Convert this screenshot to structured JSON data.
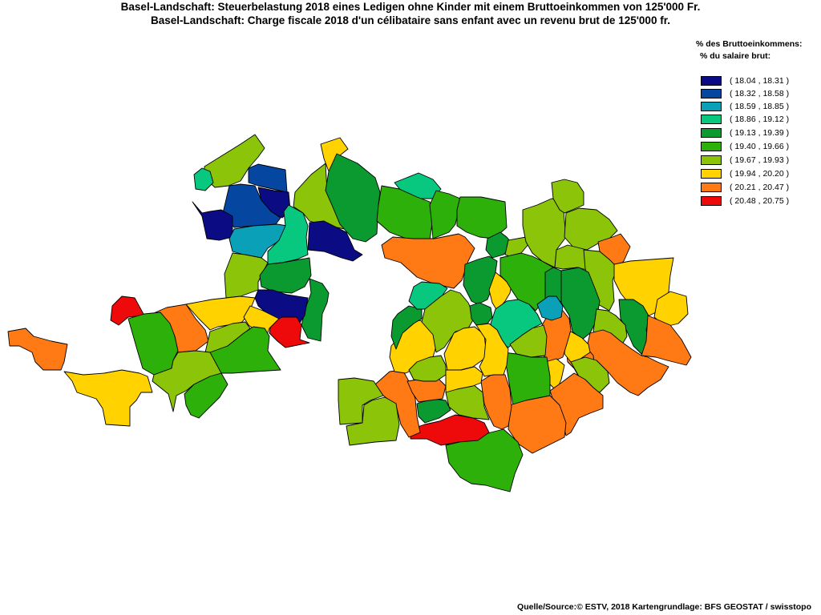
{
  "title_de": "Basel-Landschaft: Steuerbelastung 2018 eines Ledigen ohne Kinder mit einem Bruttoeinkommen von 125'000 Fr.",
  "title_fr": "Basel-Landschaft: Charge fiscale 2018 d'un célibataire sans enfant avec un revenu brut de 125'000 fr.",
  "legend": {
    "heading_de": "% des Bruttoeinkommens:",
    "heading_fr": "% du salaire brut:",
    "classes": [
      {
        "label": "( 18.04 , 18.31 )",
        "color": "#0b0b84"
      },
      {
        "label": "( 18.32 , 18.58 )",
        "color": "#0547a0"
      },
      {
        "label": "( 18.59 , 18.85 )",
        "color": "#0aa0b8"
      },
      {
        "label": "( 18.86 , 19.12 )",
        "color": "#08c880"
      },
      {
        "label": "( 19.13 , 19.39 )",
        "color": "#0a9a30"
      },
      {
        "label": "( 19.40 , 19.66 )",
        "color": "#2eb00a"
      },
      {
        "label": "( 19.67 , 19.93 )",
        "color": "#8cc40a"
      },
      {
        "label": "( 19.94 , 20.20 )",
        "color": "#ffd200"
      },
      {
        "label": "( 20.21 , 20.47 )",
        "color": "#ff7a14"
      },
      {
        "label": "( 20.48 , 20.75 )",
        "color": "#ee0a0a"
      }
    ]
  },
  "source": "Quelle/Source:© ESTV, 2018 Kartengrundlage: BFS GEOSTAT / swisstopo"
}
